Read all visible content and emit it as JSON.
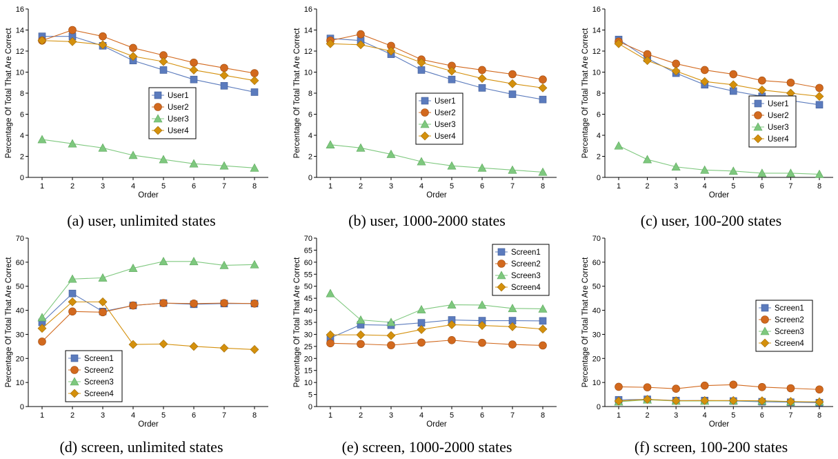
{
  "colors": {
    "series1": "#5b7bbd",
    "series2": "#d2691e",
    "series3": "#7ec87e",
    "series4": "#d4900c"
  },
  "chart_data": [
    {
      "type": "line",
      "caption": "(a) user, unlimited states",
      "xlabel": "Order",
      "ylabel": "Percentage Of Total That Are Correct",
      "x": [
        1,
        2,
        3,
        4,
        5,
        6,
        7,
        8
      ],
      "ylim": [
        0,
        16
      ],
      "yticks": [
        0,
        2,
        4,
        6,
        8,
        10,
        12,
        14,
        16
      ],
      "series": [
        {
          "name": "User1",
          "values": [
            13.4,
            13.4,
            12.5,
            11.1,
            10.2,
            9.3,
            8.7,
            8.1
          ]
        },
        {
          "name": "User2",
          "values": [
            13.0,
            14.0,
            13.4,
            12.3,
            11.6,
            10.9,
            10.4,
            9.9
          ]
        },
        {
          "name": "User3",
          "values": [
            3.6,
            3.2,
            2.8,
            2.1,
            1.7,
            1.3,
            1.1,
            0.9
          ]
        },
        {
          "name": "User4",
          "values": [
            13.0,
            12.9,
            12.6,
            11.5,
            11.0,
            10.2,
            9.7,
            9.2
          ]
        }
      ]
    },
    {
      "type": "line",
      "caption": "(b) user, 1000-2000 states",
      "xlabel": "Order",
      "ylabel": "Percentage Of Total That Are Correct",
      "x": [
        1,
        2,
        3,
        4,
        5,
        6,
        7,
        8
      ],
      "ylim": [
        0,
        16
      ],
      "yticks": [
        0,
        2,
        4,
        6,
        8,
        10,
        12,
        14,
        16
      ],
      "series": [
        {
          "name": "User1",
          "values": [
            13.2,
            13.0,
            11.7,
            10.2,
            9.3,
            8.5,
            7.9,
            7.4
          ]
        },
        {
          "name": "User2",
          "values": [
            13.0,
            13.6,
            12.5,
            11.2,
            10.6,
            10.2,
            9.8,
            9.3
          ]
        },
        {
          "name": "User3",
          "values": [
            3.1,
            2.8,
            2.2,
            1.5,
            1.1,
            0.9,
            0.7,
            0.5
          ]
        },
        {
          "name": "User4",
          "values": [
            12.7,
            12.6,
            12.0,
            10.9,
            10.1,
            9.4,
            8.9,
            8.5
          ]
        }
      ]
    },
    {
      "type": "line",
      "caption": "(c) user, 100-200 states",
      "xlabel": "Order",
      "ylabel": "Percentage Of Total That Are Correct",
      "x": [
        1,
        2,
        3,
        4,
        5,
        6,
        7,
        8
      ],
      "ylim": [
        0,
        16
      ],
      "yticks": [
        0,
        2,
        4,
        6,
        8,
        10,
        12,
        14,
        16
      ],
      "series": [
        {
          "name": "User1",
          "values": [
            13.1,
            11.3,
            9.9,
            8.8,
            8.2,
            7.7,
            7.3,
            6.9
          ]
        },
        {
          "name": "User2",
          "values": [
            12.9,
            11.7,
            10.8,
            10.2,
            9.8,
            9.2,
            9.0,
            8.5
          ]
        },
        {
          "name": "User3",
          "values": [
            3.0,
            1.7,
            1.0,
            0.7,
            0.6,
            0.4,
            0.4,
            0.3
          ]
        },
        {
          "name": "User4",
          "values": [
            12.7,
            11.1,
            10.1,
            9.1,
            8.8,
            8.3,
            8.0,
            7.7
          ]
        }
      ]
    },
    {
      "type": "line",
      "caption": "(d) screen, unlimited states",
      "xlabel": "Order",
      "ylabel": "Percentage Of Total That Are Correct",
      "x": [
        1,
        2,
        3,
        4,
        5,
        6,
        7,
        8
      ],
      "ylim": [
        0,
        70
      ],
      "yticks": [
        0,
        10,
        20,
        30,
        40,
        50,
        60,
        70
      ],
      "series": [
        {
          "name": "Screen1",
          "values": [
            35.0,
            47.0,
            39.5,
            42.0,
            43.0,
            42.5,
            42.8,
            42.8
          ]
        },
        {
          "name": "Screen2",
          "values": [
            27.0,
            39.5,
            39.2,
            42.0,
            43.0,
            42.8,
            43.0,
            42.8
          ]
        },
        {
          "name": "Screen3",
          "values": [
            37.0,
            53.0,
            53.5,
            57.5,
            60.3,
            60.3,
            58.7,
            59.0
          ]
        },
        {
          "name": "Screen4",
          "values": [
            32.5,
            43.5,
            43.5,
            25.8,
            26.0,
            25.0,
            24.3,
            23.7
          ]
        }
      ]
    },
    {
      "type": "line",
      "caption": "(e) screen, 1000-2000 states",
      "xlabel": "Order",
      "ylabel": "Percentage Of Total That Are Correct",
      "x": [
        1,
        2,
        3,
        4,
        5,
        6,
        7,
        8
      ],
      "ylim": [
        0,
        70
      ],
      "yticks": [
        0,
        5,
        10,
        15,
        20,
        25,
        30,
        35,
        40,
        45,
        50,
        55,
        60,
        65,
        70
      ],
      "series": [
        {
          "name": "Screen1",
          "values": [
            28.5,
            34.0,
            33.8,
            34.8,
            36.0,
            35.7,
            35.7,
            35.6
          ]
        },
        {
          "name": "Screen2",
          "values": [
            26.3,
            26.0,
            25.5,
            26.6,
            27.6,
            26.5,
            25.8,
            25.4
          ]
        },
        {
          "name": "Screen3",
          "values": [
            47.0,
            36.0,
            35.0,
            40.3,
            42.3,
            42.2,
            40.8,
            40.6
          ]
        },
        {
          "name": "Screen4",
          "values": [
            29.8,
            29.8,
            29.5,
            32.0,
            34.0,
            33.7,
            33.2,
            32.2
          ]
        }
      ]
    },
    {
      "type": "line",
      "caption": "(f) screen, 100-200 states",
      "xlabel": "Order",
      "ylabel": "Percentage Of Total That Are Correct",
      "x": [
        1,
        2,
        3,
        4,
        5,
        6,
        7,
        8
      ],
      "ylim": [
        0,
        70
      ],
      "yticks": [
        0,
        10,
        20,
        30,
        40,
        50,
        60,
        70
      ],
      "series": [
        {
          "name": "Screen1",
          "values": [
            2.8,
            3.0,
            2.5,
            2.5,
            2.3,
            2.0,
            1.8,
            1.6
          ]
        },
        {
          "name": "Screen2",
          "values": [
            8.2,
            8.0,
            7.4,
            8.7,
            9.1,
            8.1,
            7.6,
            7.1
          ]
        },
        {
          "name": "Screen3",
          "values": [
            2.0,
            2.8,
            2.3,
            2.3,
            2.4,
            2.3,
            2.0,
            2.0
          ]
        },
        {
          "name": "Screen4",
          "values": [
            2.3,
            3.0,
            2.4,
            2.5,
            2.5,
            2.4,
            2.1,
            1.9
          ]
        }
      ]
    }
  ]
}
